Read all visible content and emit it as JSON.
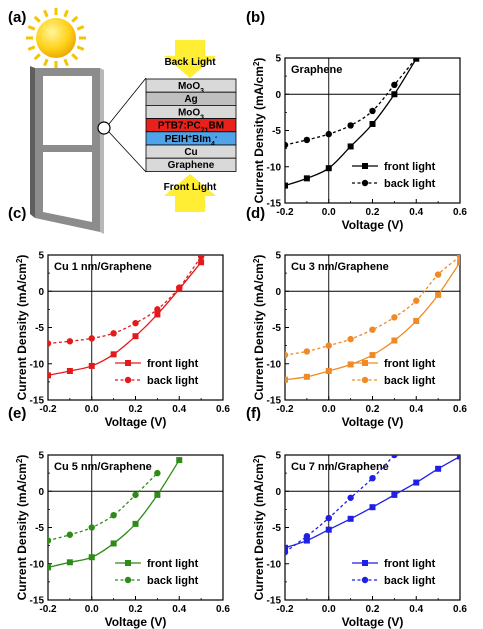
{
  "panel_a": {
    "label": "(a)",
    "back_light": "Back Light",
    "front_light": "Front Light",
    "layers": [
      {
        "html": "MoO<tspan baseline-shift='sub' font-size='7'>3</tspan>",
        "text": "MoO3",
        "color": "#d9d9d9"
      },
      {
        "html": "Ag",
        "text": "Ag",
        "color": "#bfbfbf"
      },
      {
        "html": "MoO<tspan baseline-shift='sub' font-size='7'>3</tspan>",
        "text": "MoO3",
        "color": "#d9d9d9"
      },
      {
        "html": "PTB7:PC<tspan baseline-shift='sub' font-size='7'>71</tspan>BM",
        "text": "PTB7:PC71BM",
        "color": "#e8221b"
      },
      {
        "html": "PEIH<tspan baseline-shift='super' font-size='7'>+</tspan>BIm<tspan baseline-shift='sub' font-size='7'>4</tspan><tspan baseline-shift='super' font-size='7'>-</tspan>",
        "text": "PEIH+BIm4-",
        "color": "#4fa3e8"
      },
      {
        "html": "Cu",
        "text": "Cu",
        "color": "#d9d9d9"
      },
      {
        "html": "Graphene",
        "text": "Graphene",
        "color": "#d9d9d9"
      }
    ]
  },
  "chart_data": [
    {
      "panel": "(b)",
      "type": "line",
      "title": "Graphene",
      "color": "#000000",
      "xlabel": "Voltage (V)",
      "ylabel": "Current Density (mA/cm²)",
      "xlim": [
        -0.2,
        0.6
      ],
      "ylim": [
        -15,
        5
      ],
      "xticks": [
        -0.2,
        0.0,
        0.2,
        0.4,
        0.6
      ],
      "yticks": [
        5,
        0,
        -5,
        -10,
        -15
      ],
      "legend": "bottom-right",
      "series": [
        {
          "name": "front light",
          "marker": "square",
          "dash": false,
          "x": [
            -0.2,
            -0.1,
            0.0,
            0.1,
            0.2,
            0.3,
            0.4
          ],
          "y": [
            -12.6,
            -11.6,
            -10.2,
            -7.2,
            -4.1,
            0.0,
            4.9
          ]
        },
        {
          "name": "back light",
          "marker": "circle",
          "dash": true,
          "x": [
            -0.2,
            -0.1,
            0.0,
            0.1,
            0.2,
            0.3,
            0.4
          ],
          "y": [
            -7.0,
            -6.3,
            -5.5,
            -4.3,
            -2.3,
            1.3,
            5.0
          ]
        }
      ]
    },
    {
      "panel": "(c)",
      "type": "line",
      "title": "Cu 1 nm/Graphene",
      "color": "#e31a1c",
      "xlabel": "Voltage (V)",
      "ylabel": "Current Density (mA/cm²)",
      "xlim": [
        -0.2,
        0.6
      ],
      "ylim": [
        -15,
        5
      ],
      "xticks": [
        -0.2,
        0.0,
        0.2,
        0.4,
        0.6
      ],
      "yticks": [
        5,
        0,
        -5,
        -10,
        -15
      ],
      "legend": "bottom-right",
      "series": [
        {
          "name": "front light",
          "marker": "square",
          "dash": false,
          "x": [
            -0.2,
            -0.1,
            0.0,
            0.1,
            0.2,
            0.3,
            0.4,
            0.5
          ],
          "y": [
            -11.6,
            -11.0,
            -10.3,
            -8.7,
            -6.2,
            -3.2,
            0.3,
            4.0
          ]
        },
        {
          "name": "back light",
          "marker": "circle",
          "dash": true,
          "x": [
            -0.2,
            -0.1,
            0.0,
            0.1,
            0.2,
            0.3,
            0.4,
            0.5
          ],
          "y": [
            -7.2,
            -6.9,
            -6.5,
            -5.8,
            -4.4,
            -2.5,
            0.5,
            4.8
          ]
        }
      ]
    },
    {
      "panel": "(d)",
      "type": "line",
      "title": "Cu 3 nm/Graphene",
      "color": "#f08a24",
      "xlabel": "Voltage (V)",
      "ylabel": "Current Density (mA/cm²)",
      "xlim": [
        -0.2,
        0.6
      ],
      "ylim": [
        -15,
        5
      ],
      "xticks": [
        -0.2,
        0.0,
        0.2,
        0.4,
        0.6
      ],
      "yticks": [
        5,
        0,
        -5,
        -10,
        -15
      ],
      "legend": "bottom-right",
      "series": [
        {
          "name": "front light",
          "marker": "square",
          "dash": false,
          "x": [
            -0.2,
            -0.1,
            0.0,
            0.1,
            0.2,
            0.3,
            0.4,
            0.5,
            0.6
          ],
          "y": [
            -12.2,
            -11.8,
            -11.0,
            -10.1,
            -8.8,
            -6.8,
            -4.1,
            -0.5,
            4.0
          ]
        },
        {
          "name": "back light",
          "marker": "circle",
          "dash": true,
          "x": [
            -0.2,
            -0.1,
            0.0,
            0.1,
            0.2,
            0.3,
            0.4,
            0.5,
            0.6
          ],
          "y": [
            -8.8,
            -8.3,
            -7.5,
            -6.6,
            -5.3,
            -3.6,
            -1.3,
            2.3,
            4.8
          ]
        }
      ]
    },
    {
      "panel": "(e)",
      "type": "line",
      "title": "Cu 5 nm/Graphene",
      "color": "#2e8b17",
      "xlabel": "Voltage (V)",
      "ylabel": "Current Density (mA/cm²)",
      "xlim": [
        -0.2,
        0.6
      ],
      "ylim": [
        -15,
        5
      ],
      "xticks": [
        -0.2,
        0.0,
        0.2,
        0.4,
        0.6
      ],
      "yticks": [
        5,
        0,
        -5,
        -10,
        -15
      ],
      "legend": "bottom-right",
      "series": [
        {
          "name": "front light",
          "marker": "square",
          "dash": false,
          "x": [
            -0.2,
            -0.1,
            0.0,
            0.1,
            0.2,
            0.3,
            0.4
          ],
          "y": [
            -10.5,
            -9.8,
            -9.1,
            -7.2,
            -4.5,
            -0.5,
            4.3
          ]
        },
        {
          "name": "back light",
          "marker": "circle",
          "dash": true,
          "x": [
            -0.2,
            -0.1,
            0.0,
            0.1,
            0.2,
            0.3
          ],
          "y": [
            -6.8,
            -6.0,
            -5.0,
            -3.3,
            -0.5,
            2.5
          ]
        }
      ]
    },
    {
      "panel": "(f)",
      "type": "line",
      "title": "Cu 7 nm/Graphene",
      "color": "#1f1fe6",
      "xlabel": "Voltage (V)",
      "ylabel": "Current Density (mA/cm²)",
      "xlim": [
        -0.2,
        0.6
      ],
      "ylim": [
        -15,
        5
      ],
      "xticks": [
        -0.2,
        0.0,
        0.2,
        0.4,
        0.6
      ],
      "yticks": [
        5,
        0,
        -5,
        -10,
        -15
      ],
      "legend": "bottom-right",
      "series": [
        {
          "name": "front light",
          "marker": "square",
          "dash": false,
          "x": [
            -0.2,
            -0.1,
            0.0,
            0.1,
            0.2,
            0.3,
            0.4,
            0.5,
            0.6
          ],
          "y": [
            -7.8,
            -6.8,
            -5.3,
            -3.8,
            -2.2,
            -0.5,
            1.2,
            3.1,
            4.8
          ]
        },
        {
          "name": "back light",
          "marker": "circle",
          "dash": true,
          "x": [
            -0.2,
            -0.1,
            0.0,
            0.1,
            0.2,
            0.3
          ],
          "y": [
            -8.4,
            -6.2,
            -3.7,
            -0.9,
            1.8,
            5.0
          ]
        }
      ]
    }
  ]
}
